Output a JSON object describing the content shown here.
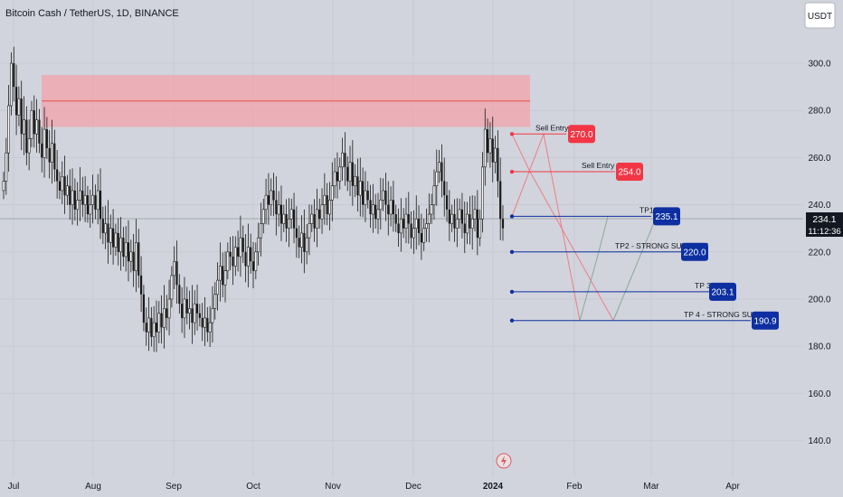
{
  "header": {
    "title": "Bitcoin Cash / TetherUS, 1D, BINANCE"
  },
  "currency_button": {
    "label": "USDT"
  },
  "price_tag": {
    "price": "234.1",
    "countdown": "11:12:36"
  },
  "colors": {
    "background": "#d1d4dc",
    "candle": "#1a1a1a",
    "zone_fill": "#f2a3ab",
    "zone_line": "#e8514e",
    "sell_label": "#f23645",
    "tp_label": "#0d2fa1",
    "path_sell": "#f07b85",
    "path_tp": "#8aa89a"
  },
  "chart_data": {
    "type": "candlestick",
    "y_axis": {
      "min": 130,
      "max": 310,
      "ticks": [
        140,
        160,
        180,
        200,
        220,
        240,
        260,
        280,
        300
      ],
      "tick_labels": [
        "140.0",
        "160.0",
        "180.0",
        "200.0",
        "220.0",
        "240.0",
        "260.0",
        "280.0",
        "300.0"
      ]
    },
    "x_axis": {
      "labels": [
        "Jul",
        "Aug",
        "Sep",
        "Oct",
        "Nov",
        "Dec",
        "2024",
        "Feb",
        "Mar",
        "Apr"
      ]
    },
    "last_price": 234.1,
    "resistance_zone": {
      "low": 273,
      "high": 295,
      "mid": 284
    },
    "levels": [
      {
        "label": "Sell Entry 2",
        "value": 270,
        "badge": "270.0",
        "kind": "sell"
      },
      {
        "label": "Sell Entry 1",
        "value": 254,
        "badge": "254.0",
        "kind": "sell"
      },
      {
        "label": "TP1",
        "value": 235.1,
        "badge": "235.1",
        "kind": "tp"
      },
      {
        "label": "TP2 - STRONG SUPPORT",
        "value": 220,
        "badge": "220.0",
        "kind": "tp"
      },
      {
        "label": "TP 3",
        "value": 203.1,
        "badge": "203.1",
        "kind": "tp"
      },
      {
        "label": "TP 4 - STRONG SUPPORT",
        "value": 190.9,
        "badge": "190.9",
        "kind": "tp"
      }
    ],
    "closes": [
      250,
      262,
      282,
      300,
      290,
      278,
      285,
      270,
      276,
      262,
      268,
      280,
      270,
      276,
      266,
      260,
      272,
      264,
      258,
      266,
      255,
      250,
      246,
      252,
      244,
      248,
      240,
      246,
      238,
      242,
      246,
      240,
      244,
      236,
      240,
      244,
      238,
      246,
      234,
      228,
      232,
      224,
      230,
      222,
      228,
      220,
      226,
      218,
      224,
      216,
      220,
      212,
      224,
      210,
      202,
      190,
      186,
      192,
      184,
      190,
      186,
      194,
      188,
      196,
      192,
      200,
      210,
      216,
      206,
      198,
      192,
      200,
      194,
      196,
      190,
      198,
      194,
      192,
      188,
      192,
      186,
      190,
      196,
      202,
      208,
      214,
      206,
      212,
      220,
      218,
      214,
      222,
      218,
      226,
      220,
      214,
      222,
      216,
      212,
      220,
      226,
      232,
      238,
      244,
      240,
      246,
      242,
      236,
      240,
      232,
      236,
      230,
      234,
      238,
      230,
      226,
      222,
      228,
      220,
      226,
      232,
      236,
      230,
      238,
      234,
      240,
      244,
      236,
      242,
      248,
      254,
      250,
      256,
      262,
      256,
      250,
      258,
      248,
      252,
      244,
      250,
      240,
      246,
      242,
      236,
      240,
      234,
      238,
      242,
      246,
      240,
      236,
      242,
      236,
      232,
      228,
      234,
      230,
      236,
      232,
      226,
      230,
      234,
      228,
      224,
      230,
      232,
      236,
      240,
      248,
      254,
      258,
      250,
      244,
      238,
      232,
      236,
      230,
      234,
      238,
      232,
      228,
      236,
      230,
      234,
      238,
      226,
      234,
      256,
      272,
      262,
      268,
      258,
      264,
      250,
      234,
      230
    ]
  }
}
